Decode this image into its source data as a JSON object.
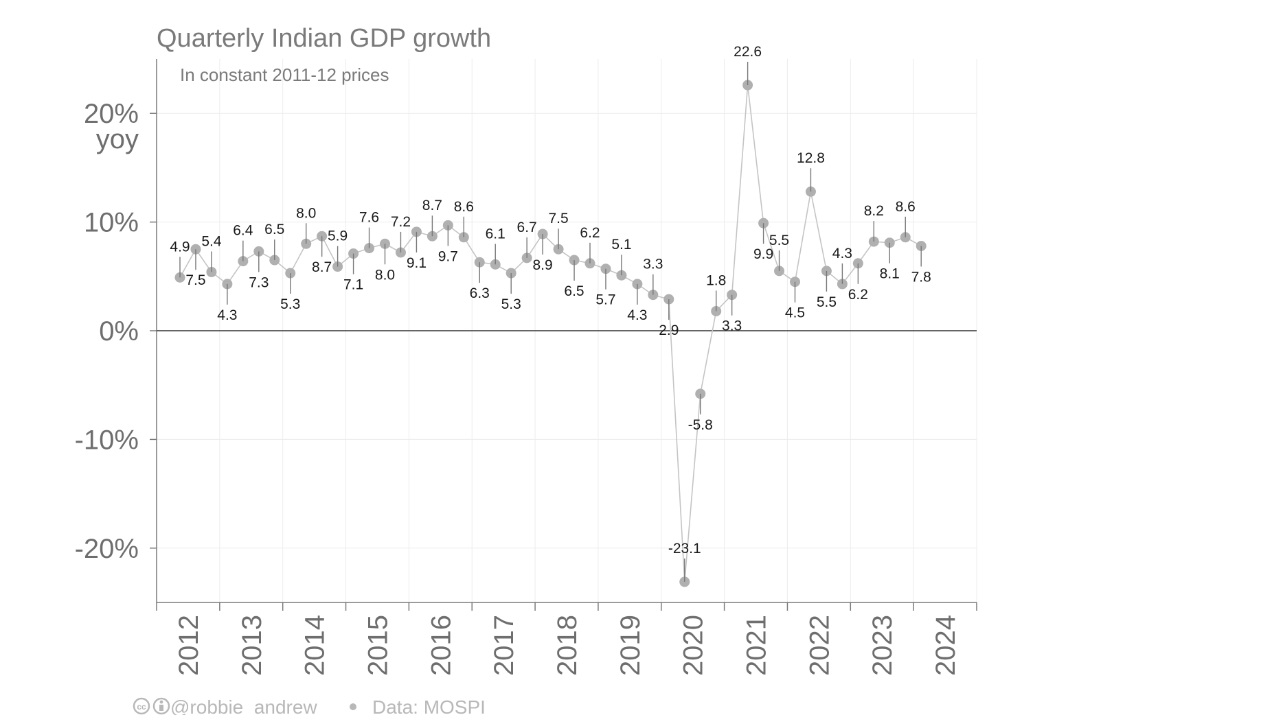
{
  "chart_data": {
    "type": "line",
    "title": "Quarterly Indian GDP growth",
    "subtitle": "In constant 2011-12 prices",
    "ylabel": "yoy",
    "ylim": [
      -25,
      25
    ],
    "y_ticks": [
      20,
      10,
      0,
      -10,
      -20
    ],
    "y_tick_labels": [
      "20%",
      "10%",
      "0%",
      "-10%",
      "-20%"
    ],
    "x_tick_labels": [
      "2012",
      "2013",
      "2014",
      "2015",
      "2016",
      "2017",
      "2018",
      "2019",
      "2020",
      "2021",
      "2022",
      "2023",
      "2024"
    ],
    "grid": true,
    "series": [
      {
        "values": [
          4.9,
          7.5,
          5.4,
          4.3,
          6.4,
          7.3,
          6.5,
          5.3,
          8.0,
          8.7,
          5.9,
          7.1,
          7.6,
          8.0,
          7.2,
          9.1,
          8.7,
          9.7,
          8.6,
          6.3,
          6.1,
          5.3,
          6.7,
          8.9,
          7.5,
          6.5,
          6.2,
          5.7,
          5.1,
          4.3,
          3.3,
          2.9,
          -23.1,
          -5.8,
          1.8,
          3.3,
          22.6,
          9.9,
          5.5,
          4.5,
          12.8,
          5.5,
          4.3,
          6.2,
          8.2,
          8.1,
          8.6,
          7.8
        ],
        "labels": [
          "4.9",
          "7.5",
          "5.4",
          "4.3",
          "6.4",
          "7.3",
          "6.5",
          "5.3",
          "8.0",
          "8.7",
          "5.9",
          "7.1",
          "7.6",
          "8.0",
          "7.2",
          "9.1",
          "8.7",
          "9.7",
          "8.6",
          "6.3",
          "6.1",
          "5.3",
          "6.7",
          "8.9",
          "7.5",
          "6.5",
          "6.2",
          "5.7",
          "5.1",
          "4.3",
          "3.3",
          "2.9",
          "-23.1",
          "-5.8",
          "1.8",
          "3.3",
          "22.6",
          "9.9",
          "5.5",
          "4.5",
          "12.8",
          "5.5",
          "4.3",
          "6.2",
          "8.2",
          "8.1",
          "8.6",
          "7.8"
        ],
        "label_side": [
          "up",
          "down",
          "up",
          "down",
          "up",
          "down",
          "up",
          "down",
          "up",
          "down",
          "up",
          "down",
          "up",
          "down",
          "up",
          "down",
          "up",
          "down",
          "up",
          "down",
          "up",
          "down",
          "up",
          "down",
          "up",
          "down",
          "up",
          "down",
          "up",
          "down",
          "up",
          "down",
          "up",
          "down",
          "up",
          "down",
          "up",
          "down",
          "up",
          "down",
          "up",
          "down",
          "up",
          "down",
          "up",
          "down",
          "up",
          "down"
        ]
      }
    ]
  },
  "colors": {
    "marker": "#b0b0b0",
    "line": "#c4c4c4",
    "zero_line": "#333333",
    "grid": "#ececec",
    "axis": "#7a7a7a",
    "text": "#7a7a7a",
    "credit": "#b8b8b8"
  },
  "credit": {
    "icons": [
      "cc-icon",
      "attribution-icon"
    ],
    "handle": "@robbie_andrew",
    "source": "Data: MOSPI"
  }
}
